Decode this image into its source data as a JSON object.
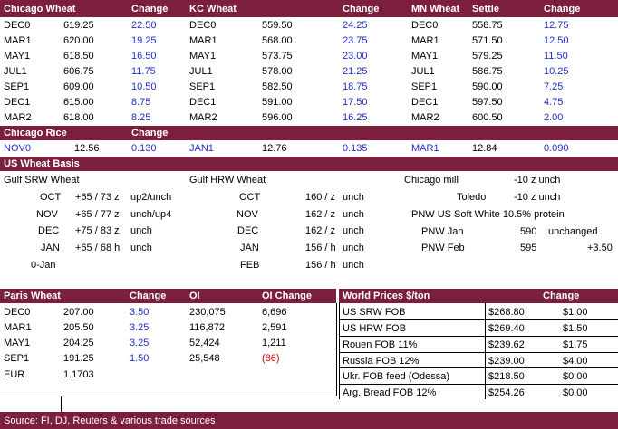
{
  "futures": {
    "headers": {
      "chicago": "Chicago Wheat",
      "chicago_change": "Change",
      "kc": "KC Wheat",
      "kc_change": "Change",
      "mn": "MN Wheat",
      "mn_settle": "Settle",
      "mn_change": "Change"
    },
    "chicago": [
      {
        "month": "DEC0",
        "price": "619.25",
        "change": "22.50"
      },
      {
        "month": "MAR1",
        "price": "620.00",
        "change": "19.25"
      },
      {
        "month": "MAY1",
        "price": "618.50",
        "change": "16.50"
      },
      {
        "month": "JUL1",
        "price": "606.75",
        "change": "11.75"
      },
      {
        "month": "SEP1",
        "price": "609.00",
        "change": "10.50"
      },
      {
        "month": "DEC1",
        "price": "615.00",
        "change": "8.75"
      },
      {
        "month": "MAR2",
        "price": "618.00",
        "change": "8.25"
      }
    ],
    "kc": [
      {
        "month": "DEC0",
        "price": "559.50",
        "change": "24.25"
      },
      {
        "month": "MAR1",
        "price": "568.00",
        "change": "23.75"
      },
      {
        "month": "MAY1",
        "price": "573.75",
        "change": "23.00"
      },
      {
        "month": "JUL1",
        "price": "578.00",
        "change": "21.25"
      },
      {
        "month": "SEP1",
        "price": "582.50",
        "change": "18.75"
      },
      {
        "month": "DEC1",
        "price": "591.00",
        "change": "17.50"
      },
      {
        "month": "MAR2",
        "price": "596.00",
        "change": "16.25"
      }
    ],
    "mn": [
      {
        "month": "DEC0",
        "price": "558.75",
        "change": "12.75"
      },
      {
        "month": "MAR1",
        "price": "571.50",
        "change": "12.50"
      },
      {
        "month": "MAY1",
        "price": "579.25",
        "change": "11.50"
      },
      {
        "month": "JUL1",
        "price": "586.75",
        "change": "10.25"
      },
      {
        "month": "SEP1",
        "price": "590.00",
        "change": "7.25"
      },
      {
        "month": "DEC1",
        "price": "597.50",
        "change": "4.75"
      },
      {
        "month": "MAR2",
        "price": "600.50",
        "change": "2.00"
      }
    ]
  },
  "rice": {
    "header": "Chicago Rice",
    "change_header": "Change",
    "items": [
      {
        "month": "NOV0",
        "price": "12.56",
        "change": "0.130"
      },
      {
        "month": "JAN1",
        "price": "12.76",
        "change": "0.135"
      },
      {
        "month": "MAR1",
        "price": "12.84",
        "change": "0.090"
      }
    ]
  },
  "basis": {
    "header": "US Wheat Basis",
    "gulf_srw_title": "Gulf SRW Wheat",
    "gulf_hrw_title": "Gulf HRW Wheat",
    "srw": [
      {
        "month": "OCT",
        "value": "+65 / 73 z",
        "note": "up2/unch"
      },
      {
        "month": "NOV",
        "value": "+65 / 77 z",
        "note": "unch/up4"
      },
      {
        "month": "DEC",
        "value": "+75 / 83 z",
        "note": "unch"
      },
      {
        "month": "JAN",
        "value": "+65 / 68 h",
        "note": "unch"
      },
      {
        "month": "0-Jan",
        "value": "",
        "note": ""
      }
    ],
    "hrw": [
      {
        "month": "OCT",
        "value": "160 / z",
        "note": "unch"
      },
      {
        "month": "NOV",
        "value": "162 / z",
        "note": "unch"
      },
      {
        "month": "DEC",
        "value": "162 / z",
        "note": "unch"
      },
      {
        "month": "JAN",
        "value": "156 / h",
        "note": "unch"
      },
      {
        "month": "FEB",
        "value": "156 / h",
        "note": "unch"
      }
    ],
    "chicago_mill": {
      "label": "Chicago mill",
      "value": "-10 z unch"
    },
    "toledo": {
      "label": "Toledo",
      "value": "-10 z unch"
    },
    "pnw_title": "PNW US Soft White 10.5% protein",
    "pnw": [
      {
        "label": "PNW Jan",
        "value": "590",
        "note": "unchanged"
      },
      {
        "label": "PNW Feb",
        "value": "595",
        "note": "+3.50"
      }
    ]
  },
  "paris": {
    "headers": {
      "title": "Paris Wheat",
      "change": "Change",
      "oi": "OI",
      "oi_change": "OI Change"
    },
    "rows": [
      {
        "month": "DEC0",
        "price": "207.00",
        "change": "3.50",
        "oi": "230,075",
        "oi_change": "6,696"
      },
      {
        "month": "MAR1",
        "price": "205.50",
        "change": "3.25",
        "oi": "116,872",
        "oi_change": "2,591"
      },
      {
        "month": "MAY1",
        "price": "204.25",
        "change": "3.25",
        "oi": "52,424",
        "oi_change": "1,211"
      },
      {
        "month": "SEP1",
        "price": "191.25",
        "change": "1.50",
        "oi": "25,548",
        "oi_change": "(86)"
      }
    ],
    "eur": {
      "label": "EUR",
      "value": "1.1703"
    }
  },
  "world": {
    "headers": {
      "title": "World Prices $/ton",
      "change": "Change"
    },
    "rows": [
      {
        "label": "US SRW FOB",
        "price": "$268.80",
        "change": "$1.00"
      },
      {
        "label": "US HRW FOB",
        "price": "$269.40",
        "change": "$1.50"
      },
      {
        "label": "Rouen FOB 11%",
        "price": "$239.62",
        "change": "$1.75"
      },
      {
        "label": "Russia FOB 12%",
        "price": "$239.00",
        "change": "$4.00"
      },
      {
        "label": "Ukr. FOB feed (Odessa)",
        "price": "$218.50",
        "change": "$0.00"
      },
      {
        "label": "Arg. Bread FOB 12%",
        "price": "$254.26",
        "change": "$0.00"
      }
    ]
  },
  "source": "Source: FI, DJ, Reuters & various trade sources",
  "colors": {
    "header_bg": "#7b1f3c",
    "change_text": "#1f2fcc",
    "negative": "#d00000"
  }
}
